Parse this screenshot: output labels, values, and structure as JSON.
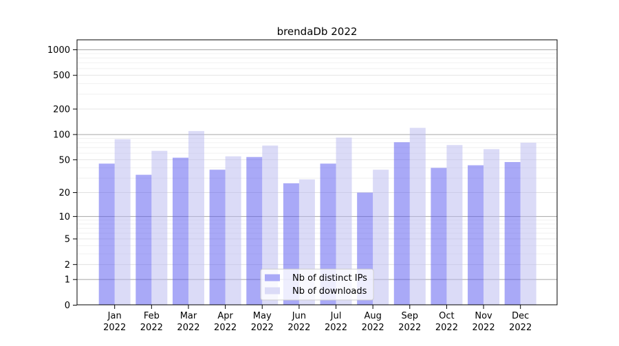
{
  "chart_data": {
    "type": "bar",
    "title": "brendaDb 2022",
    "year_label": "2022",
    "categories": [
      "Jan",
      "Feb",
      "Mar",
      "Apr",
      "May",
      "Jun",
      "Jul",
      "Aug",
      "Sep",
      "Oct",
      "Nov",
      "Dec"
    ],
    "series": [
      {
        "name": "Nb of distinct IPs",
        "color_hex": "#a9a9f7",
        "values": [
          45,
          33,
          53,
          38,
          54,
          26,
          45,
          20,
          81,
          40,
          43,
          47
        ]
      },
      {
        "name": "Nb of downloads",
        "color_hex": "#dbdbf7",
        "values": [
          88,
          64,
          110,
          55,
          74,
          29,
          92,
          38,
          120,
          75,
          67,
          80
        ]
      }
    ],
    "y_scale": "log1p",
    "y_ticks": [
      0,
      1,
      2,
      5,
      10,
      20,
      50,
      100,
      200,
      500,
      1000
    ],
    "y_max": 1000,
    "xlabel": "",
    "ylabel": "",
    "grid": true,
    "legend_position": "inside-bottom-center"
  }
}
